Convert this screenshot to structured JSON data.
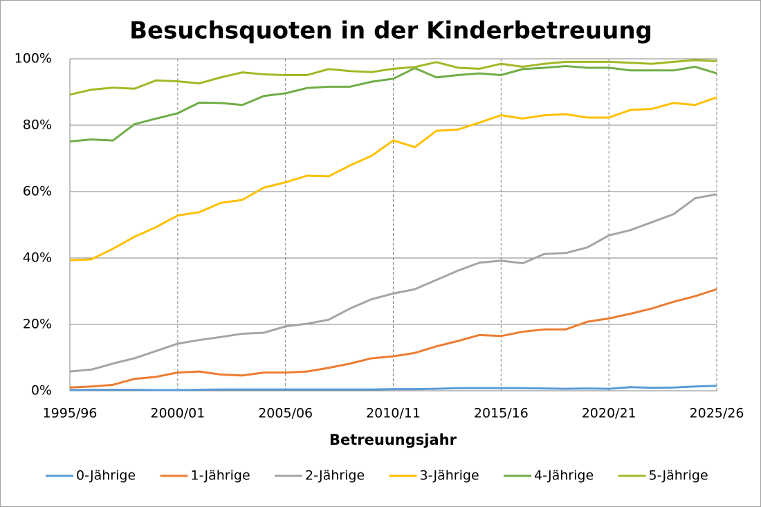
{
  "chart_data": {
    "type": "line",
    "title": "Besuchsquoten in der Kinderbetreuung",
    "xlabel": "Betreuungsjahr",
    "categories": [
      "1995/96",
      null,
      null,
      null,
      null,
      "2000/01",
      null,
      null,
      null,
      null,
      "2005/06",
      null,
      null,
      null,
      null,
      "2010/11",
      null,
      null,
      null,
      null,
      "2015/16",
      null,
      null,
      null,
      null,
      "2020/21",
      null,
      null,
      null,
      null,
      "2025/26"
    ],
    "ylim": [
      0,
      100
    ],
    "yticks": [
      {
        "value": 0,
        "label": "0%"
      },
      {
        "value": 20,
        "label": "20%"
      },
      {
        "value": 40,
        "label": "40%"
      },
      {
        "value": 60,
        "label": "60%"
      },
      {
        "value": 80,
        "label": "80%"
      },
      {
        "value": 100,
        "label": "100%"
      }
    ],
    "grid": true,
    "legend": "bottom",
    "series": [
      {
        "name": "0-Jährige",
        "color": "#5b9bd5",
        "values": [
          0.2,
          0.3,
          0.3,
          0.3,
          0.2,
          0.2,
          0.3,
          0.4,
          0.4,
          0.4,
          0.4,
          0.4,
          0.4,
          0.4,
          0.4,
          0.5,
          0.5,
          0.6,
          0.8,
          0.8,
          0.8,
          0.8,
          0.7,
          0.6,
          0.7,
          0.6,
          1.1,
          0.9,
          1.0,
          1.3,
          1.5
        ]
      },
      {
        "name": "1-Jährige",
        "color": "#ed7d31",
        "values": [
          1,
          1.3,
          1.8,
          3.6,
          4.2,
          5.5,
          5.8,
          4.9,
          4.6,
          5.5,
          5.5,
          5.8,
          6.9,
          8.2,
          9.8,
          10.4,
          11.4,
          13.4,
          15.0,
          16.8,
          16.5,
          17.8,
          18.5,
          18.5,
          20.8,
          21.8,
          23.2,
          24.8,
          26.8,
          28.5,
          30.6
        ]
      },
      {
        "name": "2-Jährige",
        "color": "#a5a5a5",
        "values": [
          5.8,
          6.4,
          8.2,
          9.8,
          12.0,
          14.2,
          15.3,
          16.2,
          17.2,
          17.5,
          19.4,
          20.2,
          21.4,
          24.8,
          27.6,
          29.3,
          30.6,
          33.4,
          36.2,
          38.6,
          39.2,
          38.4,
          41.2,
          41.5,
          43.2,
          46.8,
          48.4,
          50.8,
          53.2,
          58.0,
          59.2
        ]
      },
      {
        "name": "3-Jährige",
        "color": "#ffc000",
        "values": [
          39.3,
          39.6,
          42.8,
          46.4,
          49.3,
          52.8,
          53.8,
          56.6,
          57.5,
          61.2,
          62.8,
          64.8,
          64.6,
          67.9,
          70.8,
          75.4,
          73.4,
          78.3,
          78.7,
          80.8,
          83.0,
          82.0,
          83.0,
          83.3,
          82.3,
          82.3,
          84.6,
          84.9,
          86.7,
          86.1,
          88.4
        ]
      },
      {
        "name": "4-Jährige",
        "color": "#70ad47",
        "values": [
          75.1,
          75.7,
          75.4,
          80.3,
          82.0,
          83.6,
          86.8,
          86.7,
          86.1,
          88.8,
          89.6,
          91.2,
          91.6,
          91.6,
          93.1,
          94.0,
          97.2,
          94.4,
          95.1,
          95.6,
          95.1,
          96.9,
          97.3,
          97.8,
          97.3,
          97.3,
          96.5,
          96.5,
          96.5,
          97.6,
          95.6
        ]
      },
      {
        "name": "5-Jährige",
        "color": "#a2b826",
        "values": [
          89.2,
          90.7,
          91.3,
          91.0,
          93.5,
          93.2,
          92.6,
          94.4,
          95.9,
          95.3,
          95.1,
          95.1,
          96.9,
          96.3,
          96.0,
          97.0,
          97.5,
          99.0,
          97.3,
          97.0,
          98.5,
          97.6,
          98.5,
          99.1,
          99.1,
          99.1,
          98.8,
          98.5,
          99.1,
          99.6,
          99.3
        ]
      }
    ]
  }
}
